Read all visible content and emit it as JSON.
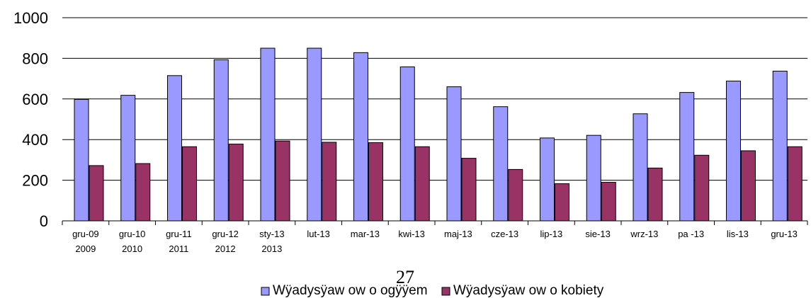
{
  "page_number": "27",
  "chart_data": {
    "type": "bar",
    "categories": [
      [
        "gru-09",
        "2009"
      ],
      [
        "gru-10",
        "2010"
      ],
      [
        "gru-11",
        "2011"
      ],
      [
        "gru-12",
        "2012"
      ],
      [
        "sty-13",
        "2013"
      ],
      [
        "lut-13"
      ],
      [
        "mar-13"
      ],
      [
        "kwi-13"
      ],
      [
        "maj-13"
      ],
      [
        "cze-13"
      ],
      [
        "lip-13"
      ],
      [
        "sie-13"
      ],
      [
        "wrz-13"
      ],
      [
        "pa -13"
      ],
      [
        "lis-13"
      ],
      [
        "gru-13"
      ]
    ],
    "series": [
      {
        "name": "Wÿadysÿaw ow o ogÿÿem",
        "color": "#9999ff",
        "values": [
          598,
          618,
          715,
          793,
          850,
          850,
          828,
          758,
          660,
          562,
          408,
          421,
          527,
          632,
          688,
          737
        ]
      },
      {
        "name": "Wÿadysÿaw ow o kobiety",
        "color": "#993366",
        "values": [
          272,
          282,
          365,
          378,
          393,
          387,
          385,
          365,
          308,
          253,
          183,
          190,
          260,
          323,
          345,
          365
        ]
      }
    ],
    "ylim": [
      0,
      1000
    ],
    "yticks": [
      "0",
      "200",
      "400",
      "600",
      "800",
      "1000"
    ],
    "grid": true,
    "legend": "bottom",
    "title": "",
    "xlabel": "",
    "ylabel": ""
  }
}
